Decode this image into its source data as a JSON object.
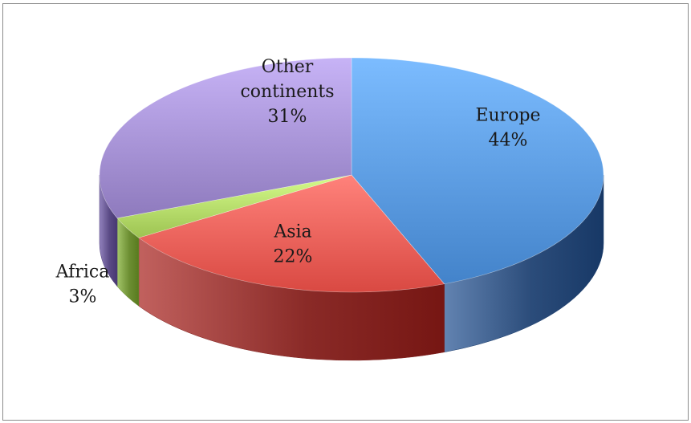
{
  "chart_data": {
    "type": "pie",
    "style": "3d",
    "slices": [
      {
        "label": "Europe",
        "value": 44,
        "value_label": "44%",
        "color": "#4f8fd6",
        "side_color": "#2b4c7a",
        "label_lines": [
          "Europe",
          "44%"
        ]
      },
      {
        "label": "Asia",
        "value": 22,
        "value_label": "22%",
        "color": "#e5554e",
        "side_color": "#8a2a27",
        "label_lines": [
          "Asia",
          "22%"
        ]
      },
      {
        "label": "Africa",
        "value": 3,
        "value_label": "3%",
        "color": "#a9cf5e",
        "side_color": "#6d8f33",
        "label_lines": [
          "Africa",
          "3%"
        ]
      },
      {
        "label": "Other continents",
        "value": 31,
        "value_label": "31%",
        "color": "#9a86c9",
        "side_color": "#5b4b86",
        "label_lines": [
          "Other",
          "continents",
          "31%"
        ]
      }
    ],
    "legend": "none",
    "data_labels": "category and percentage"
  }
}
